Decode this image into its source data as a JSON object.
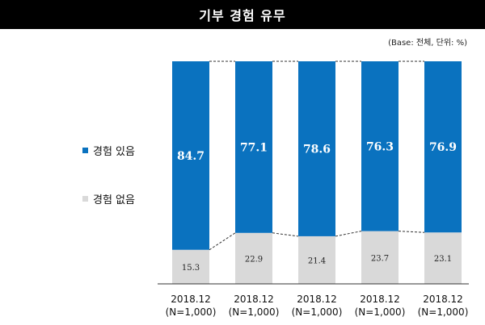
{
  "chart_data": {
    "type": "bar",
    "stacked": true,
    "title": "기부 경험 유무",
    "note": "(Base: 전체, 단위: %)",
    "categories": [
      [
        "2018.12",
        "(N=1,000)"
      ],
      [
        "2018.12",
        "(N=1,000)"
      ],
      [
        "2018.12",
        "(N=1,000)"
      ],
      [
        "2018.12",
        "(N=1,000)"
      ],
      [
        "2018.12",
        "(N=1,000)"
      ]
    ],
    "series": [
      {
        "name": "경험 있음",
        "color": "#0a72bf",
        "values": [
          84.7,
          77.1,
          78.6,
          76.3,
          76.9
        ]
      },
      {
        "name": "경험 없음",
        "color": "#d9d9d9",
        "values": [
          15.3,
          22.9,
          21.4,
          23.7,
          23.1
        ]
      }
    ],
    "ylim": [
      0,
      100
    ],
    "legend_position": "left",
    "connector_lines": "dashed"
  }
}
